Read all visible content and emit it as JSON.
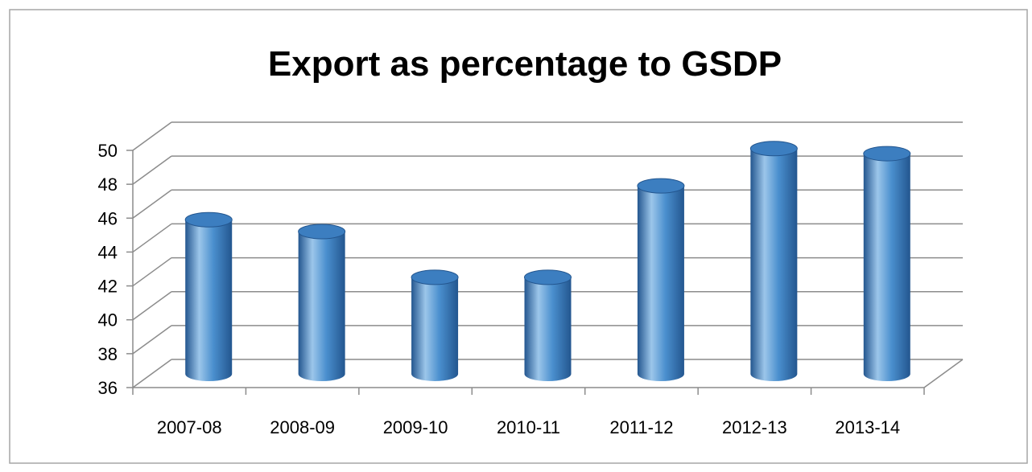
{
  "chart_data": {
    "type": "bar",
    "title": "Export as percentage to GSDP",
    "categories": [
      "2007-08",
      "2008-09",
      "2009-10",
      "2010-11",
      "2011-12",
      "2012-13",
      "2013-14"
    ],
    "values": [
      45.1,
      44.4,
      41.7,
      41.7,
      47.1,
      49.3,
      49.0
    ],
    "ylim": [
      36,
      50
    ],
    "yticks": [
      "36",
      "38",
      "40",
      "42",
      "44",
      "46",
      "48",
      "50"
    ],
    "grid": true,
    "legend": "none",
    "bar_style": "3d-cylinder",
    "colors": {
      "bar_main": "#4a8fce",
      "bar_dark": "#23568f",
      "bar_light": "#9cc6ea",
      "bar_top": "#3c7ec0",
      "grid": "#8c8c8c",
      "text": "#000000"
    }
  }
}
